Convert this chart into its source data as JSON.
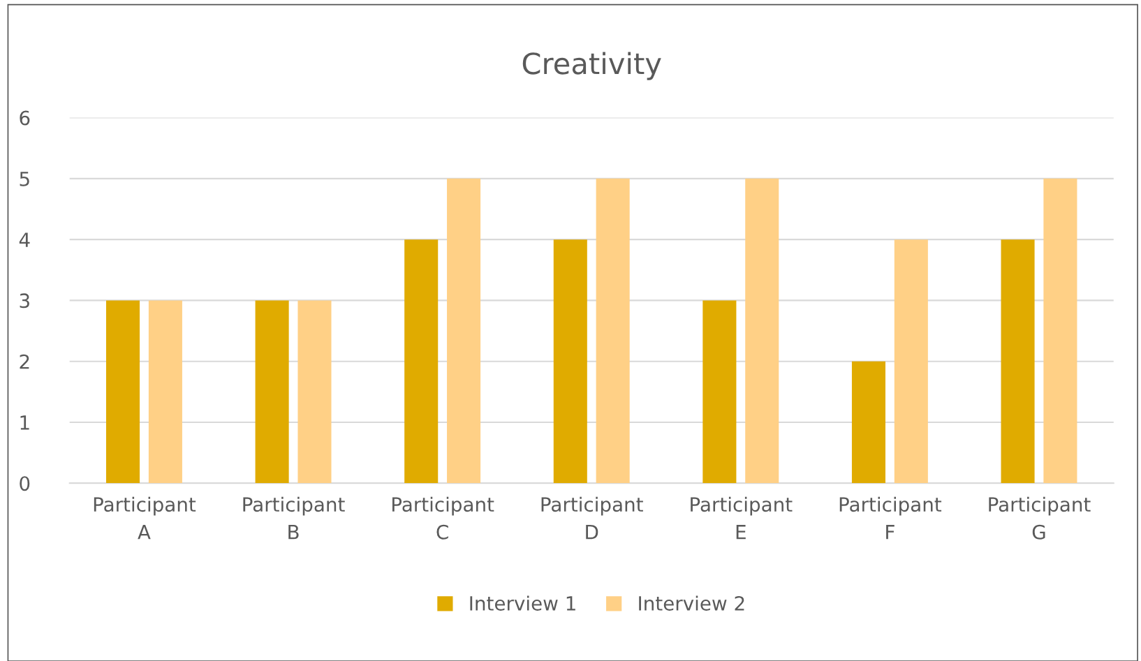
{
  "chart_data": {
    "type": "bar",
    "title": "Creativity",
    "categories": [
      "Participant A",
      "Participant B",
      "Participant C",
      "Participant D",
      "Participant E",
      "Participant F",
      "Participant G"
    ],
    "series": [
      {
        "name": "Interview 1",
        "color": "#e0ab00",
        "values": [
          3,
          3,
          4,
          4,
          3,
          2,
          4
        ]
      },
      {
        "name": "Interview 2",
        "color": "#ffd086",
        "values": [
          3,
          3,
          5,
          5,
          5,
          4,
          5
        ]
      }
    ],
    "ylim": [
      0,
      6
    ],
    "yticks": [
      0,
      1,
      2,
      3,
      4,
      5,
      6
    ],
    "grid": "y",
    "legend": "bottom"
  }
}
